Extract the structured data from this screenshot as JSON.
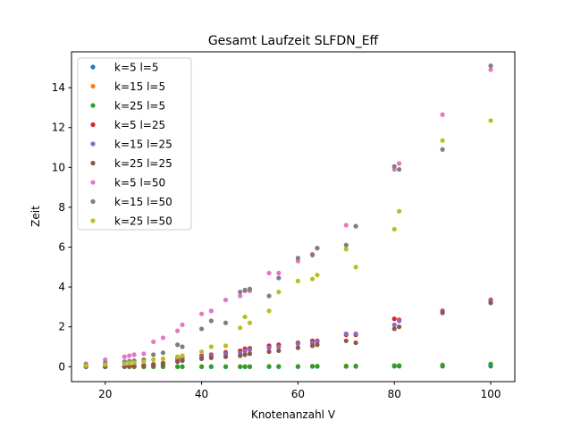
{
  "chart_data": {
    "type": "scatter",
    "title": "Gesamt Laufzeit SLFDN_Eff",
    "xlabel": "Knotenanzahl V",
    "ylabel": "Zeit",
    "xlim": [
      13,
      105
    ],
    "ylim": [
      -0.75,
      15.8
    ],
    "xticks": [
      20,
      40,
      60,
      80,
      100
    ],
    "yticks": [
      0,
      2,
      4,
      6,
      8,
      10,
      12,
      14
    ],
    "grid": false,
    "legend_position": "top-left",
    "x": [
      16,
      20,
      24,
      25,
      26,
      28,
      30,
      32,
      35,
      36,
      40,
      42,
      45,
      48,
      49,
      50,
      54,
      56,
      60,
      63,
      64,
      70,
      72,
      80,
      81,
      90,
      100
    ],
    "series": [
      {
        "name": "k=5 l=5",
        "color": "#1f77b4",
        "values": [
          0.0,
          0.0,
          0.0,
          0.0,
          0.0,
          0.0,
          0.0,
          0.0,
          0.0,
          0.0,
          0.0,
          0.0,
          0.0,
          0.0,
          0.0,
          0.0,
          0.0,
          0.0,
          0.0,
          0.01,
          0.01,
          0.01,
          0.01,
          0.02,
          0.02,
          0.02,
          0.03
        ]
      },
      {
        "name": "k=15 l=5",
        "color": "#ff7f0e",
        "values": [
          0.0,
          0.0,
          0.0,
          0.0,
          0.0,
          0.0,
          0.0,
          0.0,
          0.0,
          0.0,
          0.01,
          0.01,
          0.01,
          0.01,
          0.01,
          0.01,
          0.02,
          0.02,
          0.02,
          0.03,
          0.03,
          0.04,
          0.04,
          0.06,
          0.06,
          0.09,
          0.14
        ]
      },
      {
        "name": "k=25 l=5",
        "color": "#2ca02c",
        "values": [
          0.0,
          0.0,
          0.0,
          0.0,
          0.0,
          0.0,
          0.0,
          0.0,
          0.0,
          0.0,
          0.0,
          0.0,
          0.0,
          0.0,
          0.0,
          0.0,
          0.01,
          0.01,
          0.01,
          0.02,
          0.02,
          0.02,
          0.03,
          0.05,
          0.05,
          0.07,
          0.12
        ]
      },
      {
        "name": "k=5 l=25",
        "color": "#d62728",
        "values": [
          0.0,
          0.0,
          0.02,
          0.03,
          0.05,
          0.08,
          0.12,
          0.18,
          0.4,
          0.45,
          0.55,
          0.6,
          0.72,
          0.8,
          0.9,
          0.92,
          1.05,
          1.1,
          1.2,
          1.3,
          1.3,
          1.6,
          1.6,
          2.4,
          2.35,
          2.8,
          3.35
        ]
      },
      {
        "name": "k=15 l=25",
        "color": "#9467bd",
        "values": [
          0.0,
          0.0,
          0.02,
          0.03,
          0.04,
          0.07,
          0.1,
          0.15,
          0.3,
          0.35,
          0.5,
          0.55,
          0.65,
          0.7,
          0.8,
          0.85,
          0.95,
          1.0,
          1.15,
          1.2,
          1.25,
          1.65,
          1.65,
          2.1,
          2.3,
          2.75,
          3.3
        ]
      },
      {
        "name": "k=25 l=25",
        "color": "#8c564b",
        "values": [
          0.0,
          0.0,
          0.01,
          0.02,
          0.03,
          0.05,
          0.08,
          0.12,
          0.25,
          0.3,
          0.4,
          0.45,
          0.5,
          0.55,
          0.6,
          0.65,
          0.75,
          0.8,
          0.95,
          1.05,
          1.1,
          1.3,
          1.2,
          1.9,
          2.0,
          2.7,
          3.2
        ]
      },
      {
        "name": "k=5 l=50",
        "color": "#e377c2",
        "values": [
          0.15,
          0.35,
          0.5,
          0.55,
          0.6,
          0.65,
          1.25,
          1.45,
          1.8,
          2.1,
          2.65,
          2.8,
          3.35,
          3.55,
          3.8,
          3.8,
          4.7,
          4.7,
          5.3,
          5.65,
          5.95,
          7.1,
          7.05,
          9.9,
          10.2,
          12.65,
          14.9
        ]
      },
      {
        "name": "k=15 l=50",
        "color": "#7f7f7f",
        "values": [
          0.1,
          0.2,
          0.25,
          0.28,
          0.3,
          0.35,
          0.6,
          0.7,
          1.1,
          1.0,
          1.9,
          2.3,
          2.2,
          3.75,
          3.85,
          3.9,
          3.55,
          4.45,
          5.45,
          5.6,
          5.95,
          6.1,
          7.05,
          10.05,
          9.9,
          10.9,
          15.1
        ]
      },
      {
        "name": "k=25 l=50",
        "color": "#bcbd22",
        "values": [
          0.05,
          0.1,
          0.15,
          0.18,
          0.2,
          0.25,
          0.35,
          0.4,
          0.5,
          0.55,
          0.75,
          1.0,
          1.05,
          1.95,
          2.5,
          2.2,
          2.8,
          3.75,
          4.3,
          4.4,
          4.6,
          5.9,
          5.0,
          6.9,
          7.8,
          11.35,
          12.35
        ]
      }
    ]
  }
}
